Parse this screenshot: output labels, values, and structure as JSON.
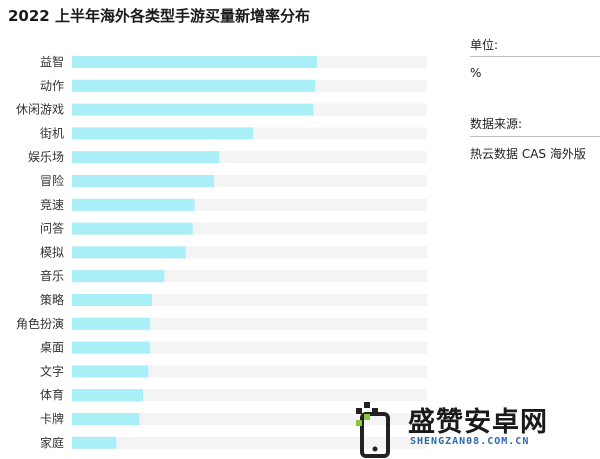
{
  "chart_data": {
    "type": "bar",
    "orientation": "horizontal",
    "title": "2022 上半年海外各类型手游买量新增率分布",
    "categories": [
      "益智",
      "动作",
      "休闲游戏",
      "街机",
      "娱乐场",
      "冒险",
      "竞速",
      "问答",
      "模拟",
      "音乐",
      "策略",
      "角色扮演",
      "桌面",
      "文字",
      "体育",
      "卡牌",
      "家庭"
    ],
    "values": [
      69,
      68.5,
      68,
      51,
      41.5,
      40,
      34.5,
      34,
      32,
      26,
      22.5,
      22,
      22,
      21.5,
      20,
      19,
      12.5
    ],
    "xlim": [
      0,
      100
    ],
    "bar_color": "#a8eff7",
    "track_color": "#f4f4f4",
    "grid": false,
    "legend": "none"
  },
  "side_panel": {
    "unit_label": "单位:",
    "unit_value": "%",
    "source_label": "数据来源:",
    "source_value": "热云数据 CAS 海外版"
  },
  "watermark": {
    "name": "盛赞安卓网",
    "url": "SHENGZAN08.COM.CN"
  }
}
